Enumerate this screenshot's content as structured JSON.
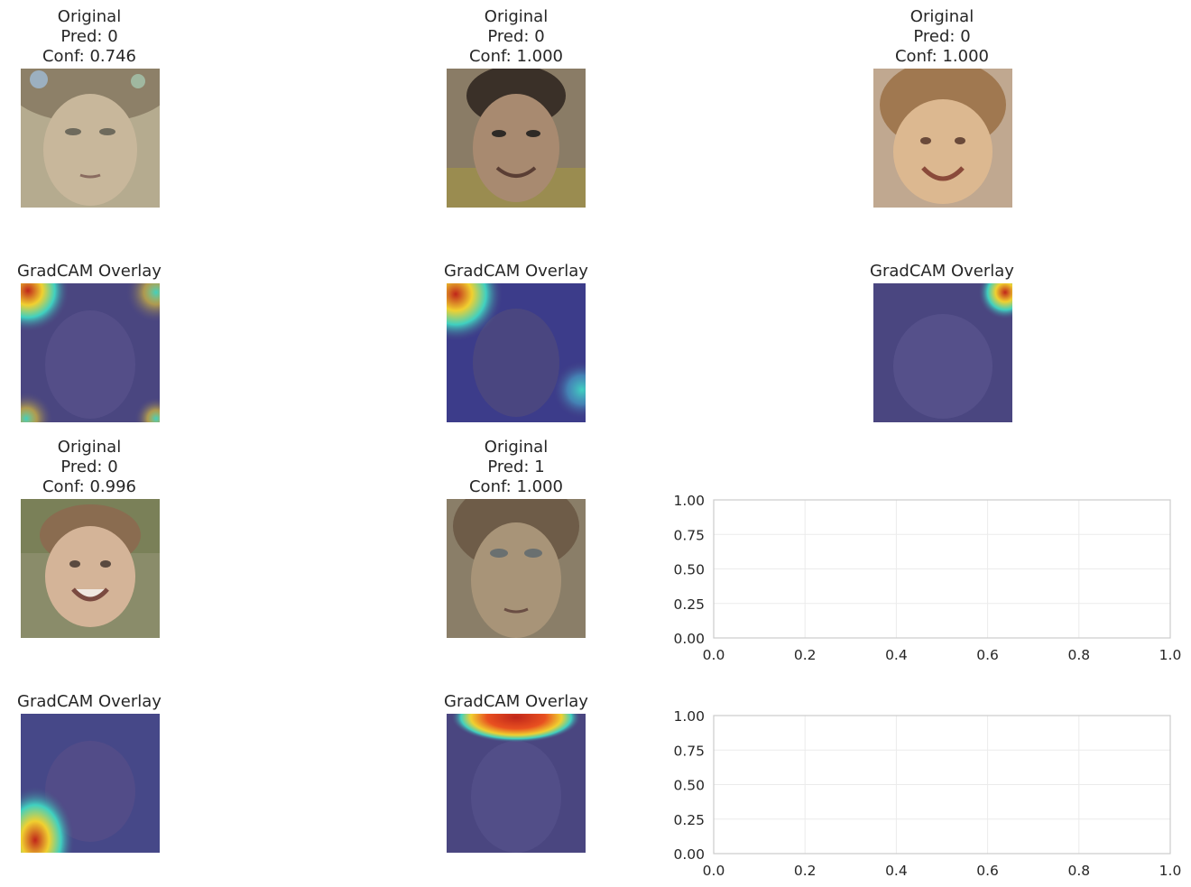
{
  "panels": [
    {
      "title": "Original\nPred: 0\nConf: 0.746",
      "kind": "original",
      "subject": "girl-with-hair-clips",
      "overlay_title": "GradCAM Overlay",
      "heat": [
        "top-left",
        "top-right",
        "bottom-left",
        "bottom-right"
      ]
    },
    {
      "title": "Original\nPred: 0\nConf: 1.000",
      "kind": "original",
      "subject": "smiling-boy",
      "overlay_title": "GradCAM Overlay",
      "heat": [
        "top-left",
        "right-bottom"
      ]
    },
    {
      "title": "Original\nPred: 0\nConf: 1.000",
      "kind": "original",
      "subject": "smiling-toddler",
      "overlay_title": "GradCAM Overlay",
      "heat": [
        "top-right"
      ]
    },
    {
      "title": "Original\nPred: 0\nConf: 0.996",
      "kind": "original",
      "subject": "smiling-boy-outdoors",
      "overlay_title": "GradCAM Overlay",
      "heat": [
        "bottom-left"
      ]
    },
    {
      "title": "Original\nPred: 1\nConf: 1.000",
      "kind": "original",
      "subject": "girl-portrait",
      "overlay_title": "GradCAM Overlay",
      "heat": [
        "top-center"
      ]
    }
  ],
  "chart_data": [
    {
      "type": "scatter",
      "title": "",
      "xlabel": "",
      "ylabel": "",
      "xlim": [
        0.0,
        1.0
      ],
      "ylim": [
        0.0,
        1.0
      ],
      "xticks": [
        "0.0",
        "0.2",
        "0.4",
        "0.6",
        "0.8",
        "1.0"
      ],
      "yticks": [
        "0.00",
        "0.25",
        "0.50",
        "0.75",
        "1.00"
      ],
      "series": [],
      "grid": true
    },
    {
      "type": "scatter",
      "title": "",
      "xlabel": "",
      "ylabel": "",
      "xlim": [
        0.0,
        1.0
      ],
      "ylim": [
        0.0,
        1.0
      ],
      "xticks": [
        "0.0",
        "0.2",
        "0.4",
        "0.6",
        "0.8",
        "1.0"
      ],
      "yticks": [
        "0.00",
        "0.25",
        "0.50",
        "0.75",
        "1.00"
      ],
      "series": [],
      "grid": true
    }
  ],
  "colors": {
    "overlay_base": "#4a4680",
    "heat_hot": "#c0261a",
    "heat_warm": "#f0d030",
    "heat_cool": "#40d0c0",
    "grid": "#ebebeb",
    "spine": "#cccccc"
  }
}
